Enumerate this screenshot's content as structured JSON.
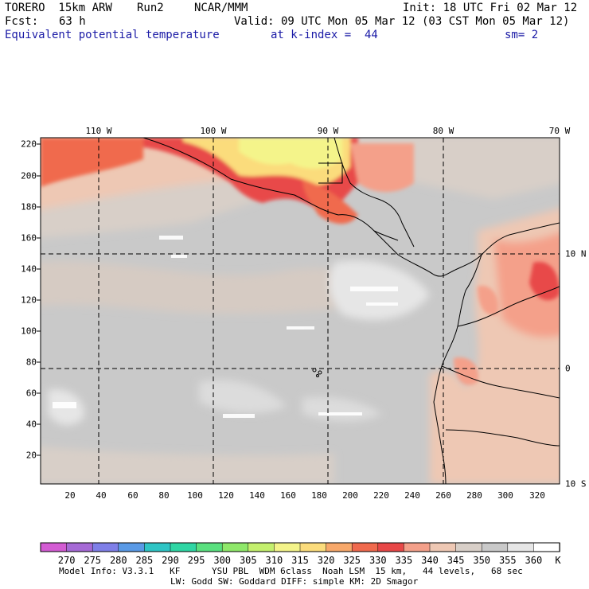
{
  "header": {
    "model": "TORERO  15km ARW",
    "run": "Run2",
    "org": "NCAR/MMM",
    "init": "Init: 18 UTC Fri 02 Mar 12",
    "fcst_label": "Fcst:",
    "fcst_value": "63 h",
    "valid": "Valid: 09 UTC Mon 05 Mar 12 (03 CST Mon 05 Mar 12)",
    "field": "Equivalent potential temperature",
    "level": "at k-index =  44",
    "smoothing": "sm= 2"
  },
  "map": {
    "lon_labels": [
      "110 W",
      "100 W",
      "90 W",
      "80 W",
      "70 W"
    ],
    "lat_labels": [
      "10 N",
      "0",
      "10 S"
    ],
    "y_ticks": [
      "220",
      "200",
      "180",
      "160",
      "140",
      "120",
      "100",
      "80",
      "60",
      "40",
      "20"
    ],
    "x_ticks": [
      "20",
      "40",
      "60",
      "80",
      "100",
      "120",
      "140",
      "160",
      "180",
      "200",
      "220",
      "240",
      "260",
      "280",
      "300",
      "320"
    ]
  },
  "colorbar": {
    "labels": [
      "270",
      "275",
      "280",
      "285",
      "290",
      "295",
      "300",
      "305",
      "310",
      "315",
      "320",
      "325",
      "330",
      "335",
      "340",
      "345",
      "350",
      "355",
      "360"
    ],
    "unit": "K",
    "colors": [
      "#d35cd3",
      "#a66ad6",
      "#7f7fe8",
      "#5a9ae6",
      "#2fc5c5",
      "#2fd6a4",
      "#5ae07f",
      "#8fe86a",
      "#c4f06e",
      "#f4f48a",
      "#fbdc7c",
      "#f7a86a",
      "#f06a4e",
      "#e84848",
      "#f4a08a",
      "#eec8b4",
      "#d8cfc8",
      "#c9c9c9",
      "#e6e6e6",
      "#ffffff"
    ]
  },
  "footer": {
    "line1": "Model Info: V3.3.1   KF      YSU PBL  WDM 6class  Noah LSM  15 km,   44 levels,   68 sec",
    "line2": "LW: Godd SW: Goddard DIFF: simple KM: 2D Smagor"
  }
}
